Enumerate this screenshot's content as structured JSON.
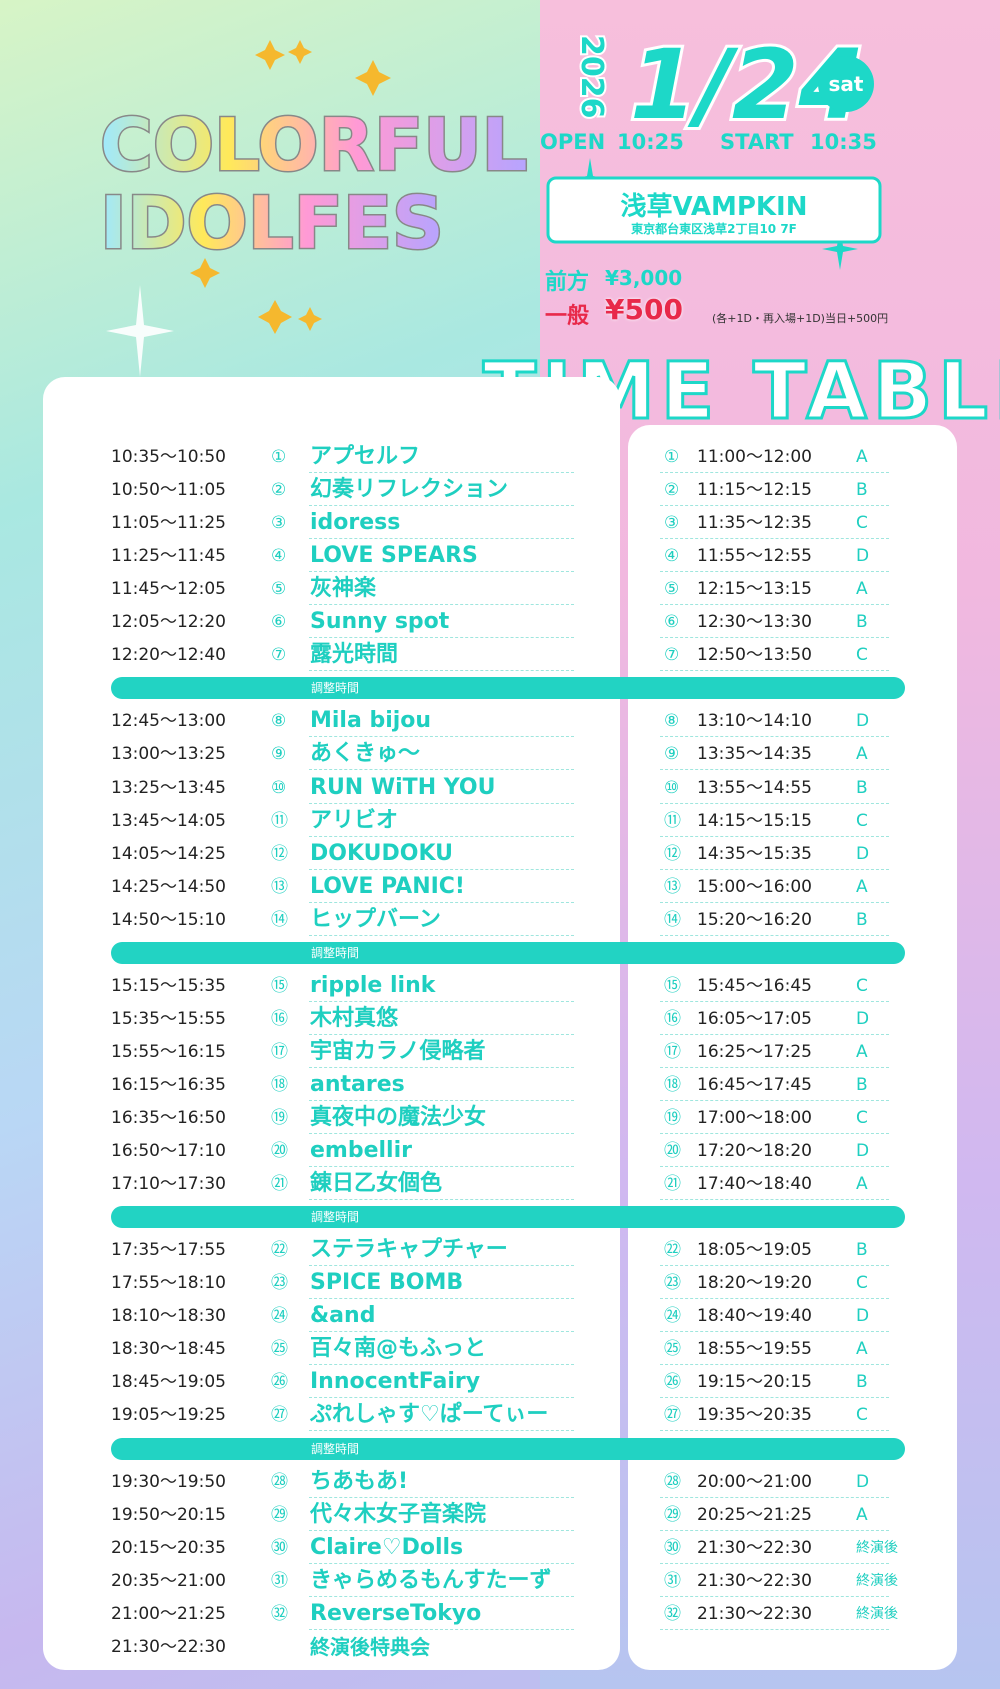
{
  "logo": {
    "line1": "COLORFUL",
    "line2": "IDOLFES"
  },
  "event": {
    "year": "2026",
    "date": "1/24",
    "day": "sat",
    "open_label": "OPEN",
    "open_time": "10:25",
    "start_label": "START",
    "start_time": "10:35",
    "venue": "浅草VAMPKIN",
    "address": "東京都台東区浅草2丁目10 7F",
    "advance_label": "前方",
    "advance_price": "¥3,000",
    "door_label": "一般",
    "door_price": "¥500",
    "note": "(各+1D・再入場+1D)当日+500円"
  },
  "timetable": {
    "title": "TIME TABLE",
    "blocks": [
      {
        "rows": [
          {
            "time": "10:35～10:50",
            "num": "①",
            "name": "アプセルフ",
            "booth_time": "11:00～12:00",
            "booth": "A"
          },
          {
            "time": "10:50～11:05",
            "num": "②",
            "name": "幻奏リフレクション",
            "booth_time": "11:15～12:15",
            "booth": "B"
          },
          {
            "time": "11:05～11:25",
            "num": "③",
            "name": "idoress",
            "booth_time": "11:35～12:35",
            "booth": "C"
          },
          {
            "time": "11:25～11:45",
            "num": "④",
            "name": "LOVE SPEARS",
            "booth_time": "11:55～12:55",
            "booth": "D"
          },
          {
            "time": "11:45～12:05",
            "num": "⑤",
            "name": "灰神楽",
            "booth_time": "12:15～13:15",
            "booth": "A"
          },
          {
            "time": "12:05～12:20",
            "num": "⑥",
            "name": "Sunny spot",
            "booth_time": "12:30～13:30",
            "booth": "B"
          },
          {
            "time": "12:20～12:40",
            "num": "⑦",
            "name": "露光時間",
            "booth_time": "12:50～13:50",
            "booth": "C"
          }
        ],
        "break": "調整時間"
      },
      {
        "rows": [
          {
            "time": "12:45～13:00",
            "num": "⑧",
            "name": "Mila bijou",
            "booth_time": "13:10～14:10",
            "booth": "D"
          },
          {
            "time": "13:00～13:25",
            "num": "⑨",
            "name": "あくきゅ～",
            "booth_time": "13:35～14:35",
            "booth": "A"
          },
          {
            "time": "13:25～13:45",
            "num": "⑩",
            "name": "RUN WiTH YOU",
            "booth_time": "13:55～14:55",
            "booth": "B"
          },
          {
            "time": "13:45～14:05",
            "num": "⑪",
            "name": "アリビオ",
            "booth_time": "14:15～15:15",
            "booth": "C"
          },
          {
            "time": "14:05～14:25",
            "num": "⑫",
            "name": "DOKUDOKU",
            "booth_time": "14:35～15:35",
            "booth": "D"
          },
          {
            "time": "14:25～14:50",
            "num": "⑬",
            "name": "LOVE PANIC!",
            "booth_time": "15:00～16:00",
            "booth": "A"
          },
          {
            "time": "14:50～15:10",
            "num": "⑭",
            "name": "ヒップバーン",
            "booth_time": "15:20～16:20",
            "booth": "B"
          }
        ],
        "break": "調整時間"
      },
      {
        "rows": [
          {
            "time": "15:15～15:35",
            "num": "⑮",
            "name": "ripple link",
            "booth_time": "15:45～16:45",
            "booth": "C"
          },
          {
            "time": "15:35～15:55",
            "num": "⑯",
            "name": "木村真悠",
            "booth_time": "16:05～17:05",
            "booth": "D"
          },
          {
            "time": "15:55～16:15",
            "num": "⑰",
            "name": "宇宙カラノ侵略者",
            "booth_time": "16:25～17:25",
            "booth": "A"
          },
          {
            "time": "16:15～16:35",
            "num": "⑱",
            "name": "antares",
            "booth_time": "16:45～17:45",
            "booth": "B"
          },
          {
            "time": "16:35～16:50",
            "num": "⑲",
            "name": "真夜中の魔法少女",
            "booth_time": "17:00～18:00",
            "booth": "C"
          },
          {
            "time": "16:50～17:10",
            "num": "⑳",
            "name": "embellir",
            "booth_time": "17:20～18:20",
            "booth": "D"
          },
          {
            "time": "17:10～17:30",
            "num": "㉑",
            "name": "錬日乙女個色",
            "booth_time": "17:40～18:40",
            "booth": "A"
          }
        ],
        "break": "調整時間"
      },
      {
        "rows": [
          {
            "time": "17:35～17:55",
            "num": "㉒",
            "name": "ステラキャプチャー",
            "booth_time": "18:05～19:05",
            "booth": "B"
          },
          {
            "time": "17:55～18:10",
            "num": "㉓",
            "name": "SPICE BOMB",
            "booth_time": "18:20～19:20",
            "booth": "C"
          },
          {
            "time": "18:10～18:30",
            "num": "㉔",
            "name": "&and",
            "booth_time": "18:40～19:40",
            "booth": "D"
          },
          {
            "time": "18:30～18:45",
            "num": "㉕",
            "name": "百々南@もふっと",
            "booth_time": "18:55～19:55",
            "booth": "A"
          },
          {
            "time": "18:45～19:05",
            "num": "㉖",
            "name": "InnocentFairy",
            "booth_time": "19:15～20:15",
            "booth": "B"
          },
          {
            "time": "19:05～19:25",
            "num": "㉗",
            "name": "ぷれしゃす♡ぱーてぃー",
            "booth_time": "19:35～20:35",
            "booth": "C"
          }
        ],
        "break": "調整時間"
      },
      {
        "rows": [
          {
            "time": "19:30～19:50",
            "num": "㉘",
            "name": "ちあもあ!",
            "booth_time": "20:00～21:00",
            "booth": "D"
          },
          {
            "time": "19:50～20:15",
            "num": "㉙",
            "name": "代々木女子音楽院",
            "booth_time": "20:25～21:25",
            "booth": "A"
          },
          {
            "time": "20:15～20:35",
            "num": "㉚",
            "name": "Claire♡Dolls",
            "booth_time": "21:30～22:30",
            "booth": "終演後"
          },
          {
            "time": "20:35～21:00",
            "num": "㉛",
            "name": "きゃらめるもんすたーず",
            "booth_time": "21:30～22:30",
            "booth": "終演後"
          },
          {
            "time": "21:00～21:25",
            "num": "㉜",
            "name": "ReverseTokyo",
            "booth_time": "21:30～22:30",
            "booth": "終演後"
          }
        ]
      }
    ],
    "finale": {
      "time": "21:30～22:30",
      "name": "終演後特典会"
    }
  }
}
